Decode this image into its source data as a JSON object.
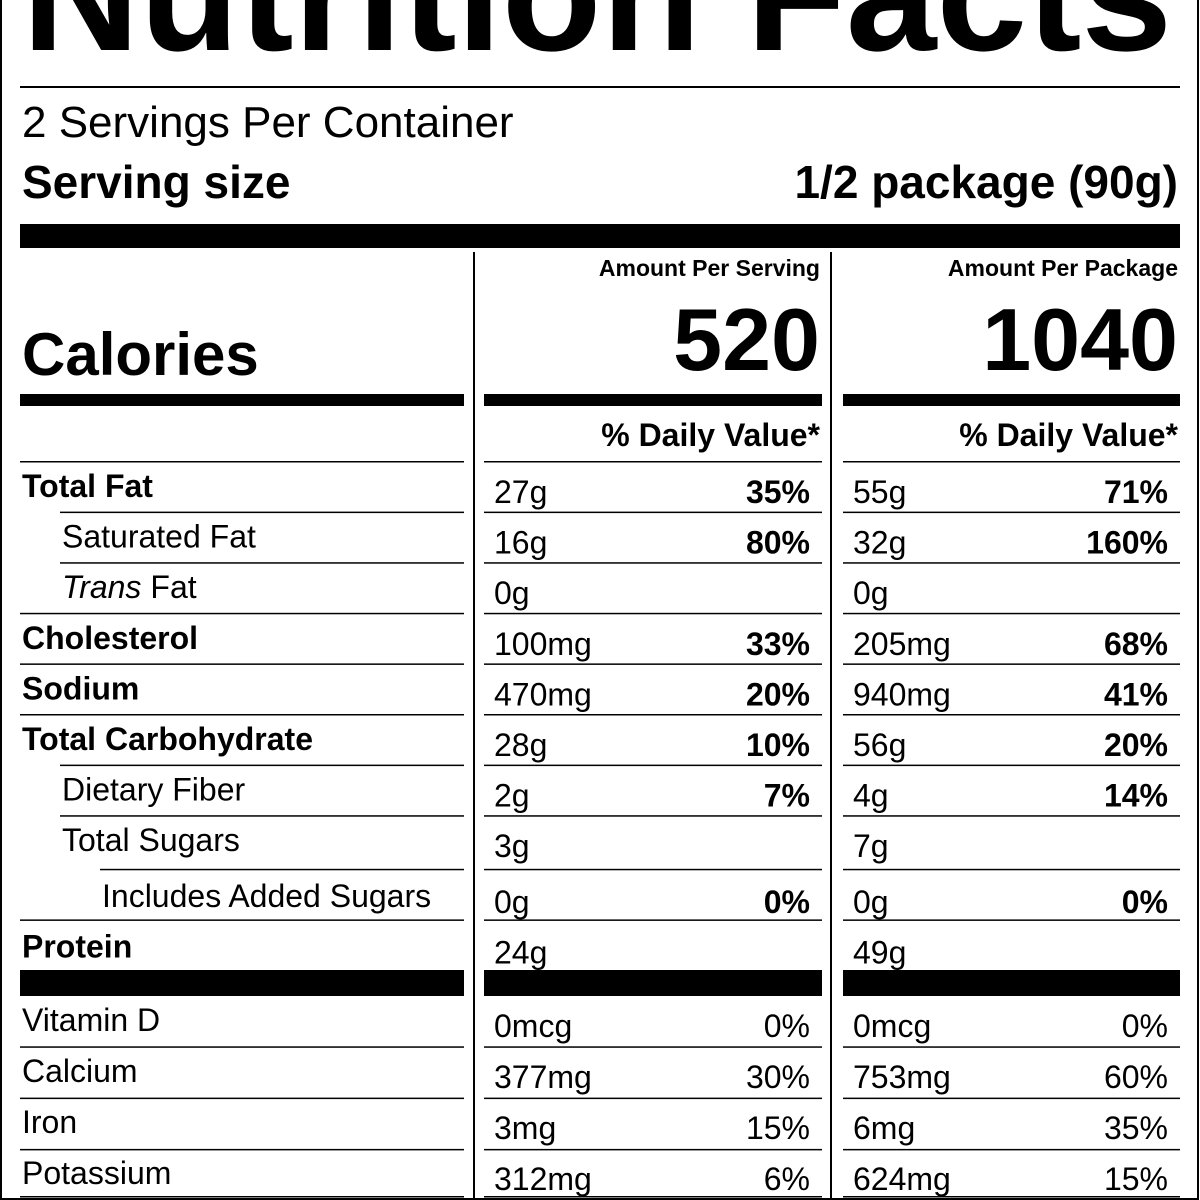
{
  "header": {
    "title": "Nutrition Facts",
    "servings": "2 Servings Per Container",
    "serving_size_label": "Serving size",
    "serving_size": "1/2 package (90g)"
  },
  "calories_label": "Calories",
  "columns": [
    {
      "heading": "Amount Per Serving",
      "calories": 520,
      "dv_heading": "% Daily Value*"
    },
    {
      "heading": "Amount Per Package",
      "calories": 1040,
      "dv_heading": "% Daily Value*"
    }
  ],
  "nutrients": [
    {
      "name": "Total Fat",
      "bold": true,
      "indent": 0,
      "amounts": [
        "27g",
        "55g"
      ],
      "dv": [
        "35%",
        "71%"
      ]
    },
    {
      "name": "Saturated Fat",
      "bold": false,
      "indent": 1,
      "amounts": [
        "16g",
        "32g"
      ],
      "dv": [
        "80%",
        "160%"
      ]
    },
    {
      "name_italic": "Trans",
      "name": "Fat",
      "bold": false,
      "indent": 1,
      "amounts": [
        "0g",
        "0g"
      ],
      "dv": [
        null,
        null
      ]
    },
    {
      "name": "Cholesterol",
      "bold": true,
      "indent": 0,
      "amounts": [
        "100mg",
        "205mg"
      ],
      "dv": [
        "33%",
        "68%"
      ]
    },
    {
      "name": "Sodium",
      "bold": true,
      "indent": 0,
      "amounts": [
        "470mg",
        "940mg"
      ],
      "dv": [
        "20%",
        "41%"
      ]
    },
    {
      "name": "Total Carbohydrate",
      "bold": true,
      "indent": 0,
      "amounts": [
        "28g",
        "56g"
      ],
      "dv": [
        "10%",
        "20%"
      ]
    },
    {
      "name": "Dietary Fiber",
      "bold": false,
      "indent": 1,
      "amounts": [
        "2g",
        "4g"
      ],
      "dv": [
        "7%",
        "14%"
      ]
    },
    {
      "name": "Total Sugars",
      "bold": false,
      "indent": 1,
      "amounts": [
        "3g",
        "7g"
      ],
      "dv": [
        null,
        null
      ]
    },
    {
      "name": "Includes Added Sugars",
      "bold": false,
      "indent": 2,
      "amounts": [
        "0g",
        "0g"
      ],
      "dv": [
        "0%",
        "0%"
      ]
    },
    {
      "name": "Protein",
      "bold": true,
      "indent": 0,
      "amounts": [
        "24g",
        "49g"
      ],
      "dv": [
        null,
        null
      ]
    }
  ],
  "micronutrients": [
    {
      "name": "Vitamin D",
      "amounts": [
        "0mcg",
        "0mcg"
      ],
      "dv": [
        "0%",
        "0%"
      ]
    },
    {
      "name": "Calcium",
      "amounts": [
        "377mg",
        "753mg"
      ],
      "dv": [
        "30%",
        "60%"
      ]
    },
    {
      "name": "Iron",
      "amounts": [
        "3mg",
        "6mg"
      ],
      "dv": [
        "15%",
        "35%"
      ]
    },
    {
      "name": "Potassium",
      "amounts": [
        "312mg",
        "624mg"
      ],
      "dv": [
        "6%",
        "15%"
      ]
    }
  ]
}
